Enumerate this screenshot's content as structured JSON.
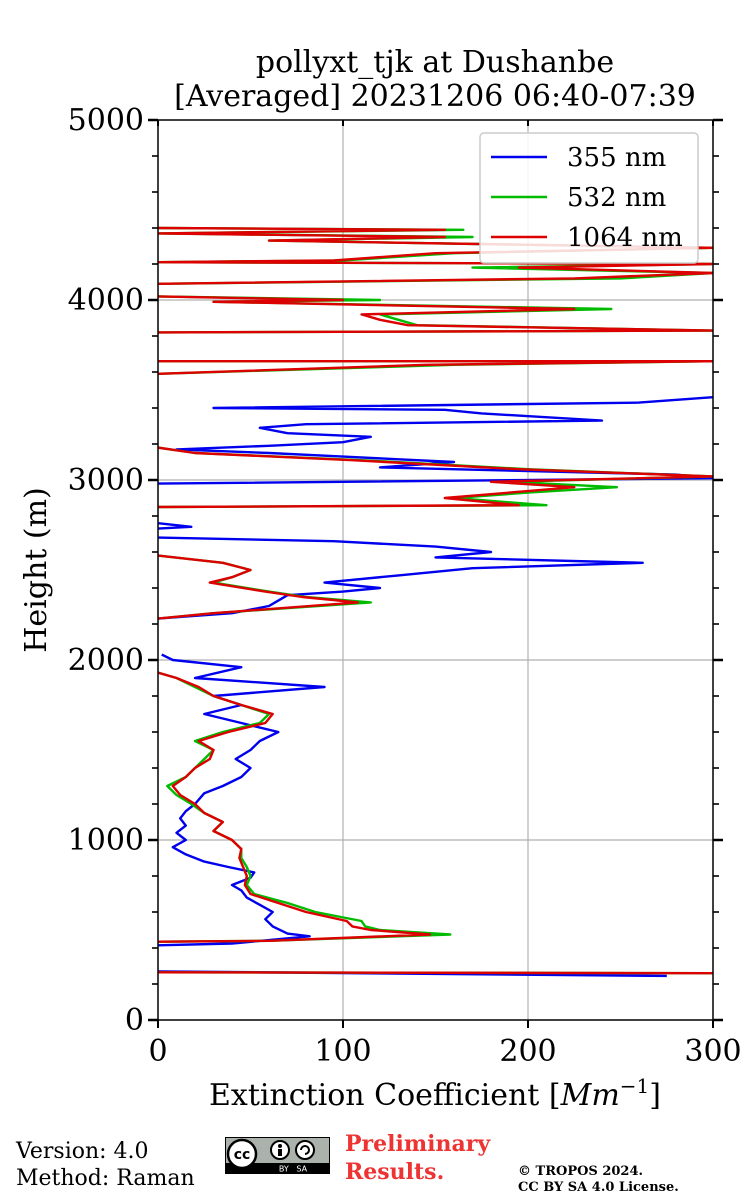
{
  "chart_data": {
    "type": "line",
    "title_line1": "pollyxt_tjk at Dushanbe",
    "title_line2": "[Averaged] 20231206 06:40-07:39",
    "xlabel": "Extinction Coefficient [Mm⁻¹]",
    "xlabel_main": "Extinction Coefficient [",
    "xlabel_unit": "Mm",
    "xlabel_exp": "−1",
    "xlabel_close": "]",
    "ylabel": "Height (m)",
    "xlim": [
      0,
      300
    ],
    "ylim": [
      0,
      5000
    ],
    "xticks": [
      0,
      100,
      200,
      300
    ],
    "xtick_labels": [
      "0",
      "100",
      "200",
      "300"
    ],
    "yticks": [
      0,
      1000,
      2000,
      3000,
      4000,
      5000
    ],
    "ytick_labels": [
      "0",
      "1000",
      "2000",
      "3000",
      "4000",
      "5000"
    ],
    "grid": true,
    "legend_position": "top-right",
    "series": [
      {
        "name": "355 nm",
        "color": "#0000ee",
        "points": [
          [
            275,
            245
          ],
          [
            0,
            270
          ],
          [
            null,
            null
          ],
          [
            0,
            415
          ],
          [
            40,
            425
          ],
          [
            82,
            465
          ],
          [
            70,
            480
          ],
          [
            62,
            520
          ],
          [
            58,
            560
          ],
          [
            62,
            600
          ],
          [
            55,
            640
          ],
          [
            48,
            680
          ],
          [
            45,
            720
          ],
          [
            40,
            750
          ],
          [
            50,
            790
          ],
          [
            52,
            820
          ],
          [
            38,
            850
          ],
          [
            25,
            880
          ],
          [
            15,
            920
          ],
          [
            8,
            960
          ],
          [
            15,
            1000
          ],
          [
            10,
            1040
          ],
          [
            15,
            1080
          ],
          [
            12,
            1120
          ],
          [
            15,
            1160
          ],
          [
            20,
            1200
          ],
          [
            25,
            1260
          ],
          [
            35,
            1300
          ],
          [
            45,
            1350
          ],
          [
            50,
            1400
          ],
          [
            42,
            1450
          ],
          [
            50,
            1500
          ],
          [
            55,
            1550
          ],
          [
            65,
            1600
          ],
          [
            45,
            1650
          ],
          [
            25,
            1700
          ],
          [
            45,
            1750
          ],
          [
            30,
            1800
          ],
          [
            90,
            1850
          ],
          [
            20,
            1900
          ],
          [
            45,
            1960
          ],
          [
            8,
            2000
          ],
          [
            2,
            2030
          ],
          [
            null,
            null
          ],
          [
            0,
            2230
          ],
          [
            40,
            2260
          ],
          [
            60,
            2300
          ],
          [
            65,
            2330
          ],
          [
            70,
            2360
          ],
          [
            100,
            2380
          ],
          [
            120,
            2400
          ],
          [
            90,
            2430
          ],
          [
            130,
            2470
          ],
          [
            170,
            2510
          ],
          [
            262,
            2540
          ],
          [
            150,
            2570
          ],
          [
            180,
            2600
          ],
          [
            150,
            2630
          ],
          [
            95,
            2660
          ],
          [
            0,
            2680
          ],
          [
            null,
            null
          ],
          [
            0,
            2730
          ],
          [
            18,
            2740
          ],
          [
            0,
            2760
          ],
          [
            null,
            null
          ],
          [
            0,
            2980
          ],
          [
            300,
            3010
          ],
          [
            280,
            3030
          ],
          [
            120,
            3070
          ],
          [
            160,
            3100
          ],
          [
            100,
            3130
          ],
          [
            60,
            3150
          ],
          [
            10,
            3170
          ],
          [
            60,
            3190
          ],
          [
            100,
            3210
          ],
          [
            115,
            3240
          ],
          [
            70,
            3260
          ],
          [
            55,
            3290
          ],
          [
            80,
            3310
          ],
          [
            240,
            3330
          ],
          [
            175,
            3370
          ],
          [
            155,
            3390
          ],
          [
            30,
            3400
          ],
          [
            260,
            3430
          ],
          [
            300,
            3460
          ]
        ]
      },
      {
        "name": "532 nm",
        "color": "#00bb00",
        "points": [
          [
            300,
            260
          ],
          [
            0,
            265
          ],
          [
            null,
            null
          ],
          [
            0,
            435
          ],
          [
            60,
            440
          ],
          [
            158,
            475
          ],
          [
            120,
            500
          ],
          [
            112,
            520
          ],
          [
            110,
            550
          ],
          [
            85,
            600
          ],
          [
            70,
            650
          ],
          [
            52,
            700
          ],
          [
            48,
            750
          ],
          [
            50,
            800
          ],
          [
            48,
            850
          ],
          [
            45,
            900
          ],
          [
            45,
            950
          ],
          [
            40,
            1000
          ],
          [
            30,
            1050
          ],
          [
            35,
            1100
          ],
          [
            25,
            1150
          ],
          [
            18,
            1200
          ],
          [
            10,
            1250
          ],
          [
            5,
            1300
          ],
          [
            15,
            1350
          ],
          [
            20,
            1400
          ],
          [
            25,
            1450
          ],
          [
            30,
            1500
          ],
          [
            20,
            1550
          ],
          [
            35,
            1600
          ],
          [
            55,
            1650
          ],
          [
            60,
            1700
          ],
          [
            45,
            1750
          ],
          [
            30,
            1800
          ],
          [
            20,
            1850
          ],
          [
            10,
            1900
          ],
          [
            0,
            1930
          ],
          [
            null,
            null
          ],
          [
            0,
            2230
          ],
          [
            30,
            2260
          ],
          [
            115,
            2320
          ],
          [
            80,
            2350
          ],
          [
            60,
            2380
          ],
          [
            30,
            2430
          ],
          [
            40,
            2460
          ],
          [
            50,
            2500
          ],
          [
            35,
            2540
          ],
          [
            0,
            2580
          ],
          [
            null,
            null
          ],
          [
            0,
            2850
          ],
          [
            210,
            2860
          ],
          [
            160,
            2900
          ],
          [
            200,
            2930
          ],
          [
            248,
            2960
          ],
          [
            190,
            2990
          ],
          [
            300,
            3020
          ],
          [
            200,
            3060
          ],
          [
            110,
            3110
          ],
          [
            20,
            3150
          ],
          [
            0,
            3180
          ],
          [
            null,
            null
          ],
          [
            0,
            3590
          ],
          [
            160,
            3640
          ],
          [
            300,
            3660
          ],
          [
            0,
            3660
          ],
          [
            null,
            null
          ],
          [
            0,
            3820
          ],
          [
            300,
            3830
          ],
          [
            140,
            3860
          ],
          [
            130,
            3890
          ],
          [
            120,
            3920
          ],
          [
            245,
            3950
          ],
          [
            30,
            3990
          ],
          [
            120,
            4000
          ],
          [
            0,
            4020
          ],
          [
            null,
            null
          ],
          [
            0,
            4090
          ],
          [
            250,
            4120
          ],
          [
            300,
            4150
          ],
          [
            170,
            4180
          ],
          [
            300,
            4200
          ],
          [
            0,
            4210
          ],
          [
            100,
            4220
          ],
          [
            160,
            4260
          ],
          [
            300,
            4290
          ],
          [
            60,
            4330
          ],
          [
            170,
            4350
          ],
          [
            0,
            4370
          ],
          [
            165,
            4390
          ],
          [
            0,
            4400
          ]
        ]
      },
      {
        "name": "1064 nm",
        "color": "#dd0000",
        "points": [
          [
            300,
            260
          ],
          [
            0,
            265
          ],
          [
            null,
            null
          ],
          [
            0,
            435
          ],
          [
            60,
            440
          ],
          [
            147,
            475
          ],
          [
            115,
            500
          ],
          [
            105,
            520
          ],
          [
            102,
            550
          ],
          [
            80,
            600
          ],
          [
            65,
            650
          ],
          [
            50,
            700
          ],
          [
            47,
            750
          ],
          [
            48,
            800
          ],
          [
            46,
            850
          ],
          [
            44,
            900
          ],
          [
            45,
            950
          ],
          [
            40,
            1000
          ],
          [
            30,
            1050
          ],
          [
            35,
            1100
          ],
          [
            25,
            1150
          ],
          [
            20,
            1200
          ],
          [
            12,
            1250
          ],
          [
            8,
            1300
          ],
          [
            15,
            1350
          ],
          [
            20,
            1400
          ],
          [
            28,
            1450
          ],
          [
            30,
            1500
          ],
          [
            22,
            1550
          ],
          [
            38,
            1600
          ],
          [
            58,
            1650
          ],
          [
            62,
            1700
          ],
          [
            45,
            1750
          ],
          [
            30,
            1800
          ],
          [
            22,
            1850
          ],
          [
            10,
            1900
          ],
          [
            0,
            1930
          ],
          [
            null,
            null
          ],
          [
            0,
            2230
          ],
          [
            30,
            2260
          ],
          [
            108,
            2320
          ],
          [
            78,
            2350
          ],
          [
            58,
            2380
          ],
          [
            28,
            2430
          ],
          [
            40,
            2460
          ],
          [
            50,
            2500
          ],
          [
            35,
            2540
          ],
          [
            0,
            2580
          ],
          [
            null,
            null
          ],
          [
            0,
            2850
          ],
          [
            195,
            2860
          ],
          [
            155,
            2900
          ],
          [
            190,
            2930
          ],
          [
            225,
            2960
          ],
          [
            180,
            2990
          ],
          [
            300,
            3020
          ],
          [
            195,
            3060
          ],
          [
            105,
            3110
          ],
          [
            20,
            3150
          ],
          [
            0,
            3180
          ],
          [
            null,
            null
          ],
          [
            0,
            3590
          ],
          [
            145,
            3640
          ],
          [
            300,
            3660
          ],
          [
            0,
            3660
          ],
          [
            null,
            null
          ],
          [
            0,
            3820
          ],
          [
            300,
            3830
          ],
          [
            135,
            3860
          ],
          [
            120,
            3890
          ],
          [
            110,
            3920
          ],
          [
            225,
            3950
          ],
          [
            30,
            3990
          ],
          [
            100,
            4000
          ],
          [
            0,
            4020
          ],
          [
            null,
            null
          ],
          [
            0,
            4090
          ],
          [
            225,
            4120
          ],
          [
            300,
            4150
          ],
          [
            195,
            4180
          ],
          [
            300,
            4200
          ],
          [
            0,
            4210
          ],
          [
            95,
            4220
          ],
          [
            150,
            4260
          ],
          [
            300,
            4290
          ],
          [
            60,
            4330
          ],
          [
            155,
            4350
          ],
          [
            0,
            4370
          ],
          [
            155,
            4390
          ],
          [
            0,
            4400
          ]
        ]
      }
    ]
  },
  "footer": {
    "version": "Version: 4.0",
    "method": "Method: Raman",
    "prelim_line1": "Preliminary",
    "prelim_line2": "Results.",
    "copyright_line1": "© TROPOS 2024.",
    "copyright_line2": "CC BY SA 4.0 License.",
    "cc_badge_text": "BY   SA",
    "cc_logo_text": "cc"
  }
}
